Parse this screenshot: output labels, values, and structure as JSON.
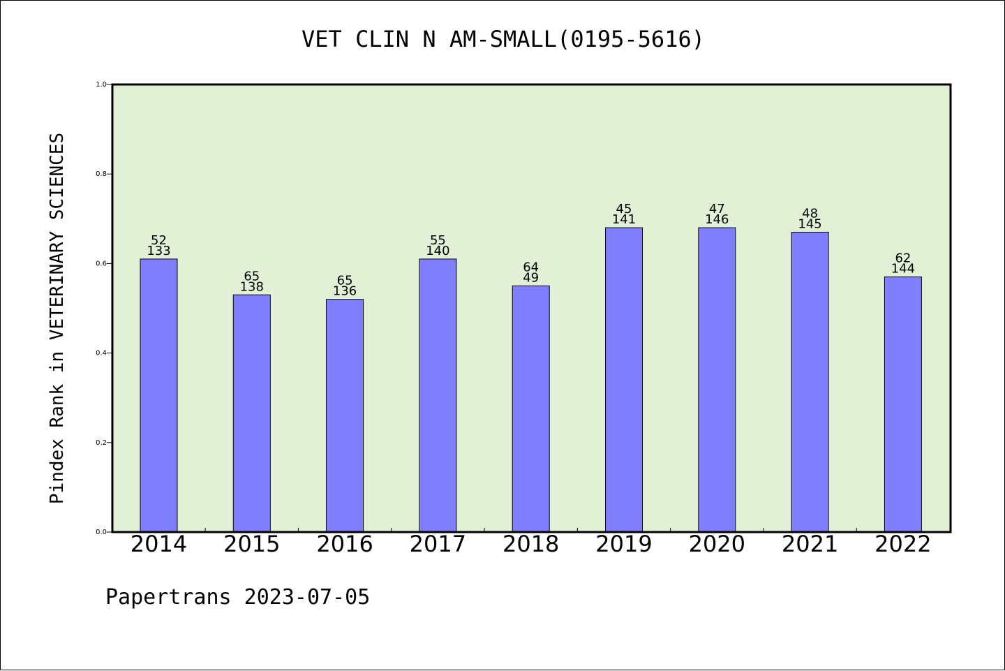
{
  "chart_data": {
    "type": "bar",
    "title": "VET CLIN N AM-SMALL(0195-5616)",
    "xlabel": "",
    "ylabel": "Pindex Rank in VETERINARY SCIENCES",
    "ylim": [
      0.0,
      1.0
    ],
    "yticks": [
      "0.0",
      "0.2",
      "0.4",
      "0.6",
      "0.8",
      "1.0"
    ],
    "grid": false,
    "categories": [
      "2014",
      "2015",
      "2016",
      "2017",
      "2018",
      "2019",
      "2020",
      "2021",
      "2022"
    ],
    "values": [
      0.61,
      0.53,
      0.52,
      0.61,
      0.55,
      0.68,
      0.68,
      0.67,
      0.57
    ],
    "labels_top": [
      "52",
      "65",
      "65",
      "55",
      "64",
      "45",
      "47",
      "48",
      "62"
    ],
    "labels_bottom": [
      "133",
      "138",
      "136",
      "140",
      "49",
      "141",
      "146",
      "145",
      "144"
    ],
    "bar_color": "#8080ff",
    "plot_background": "#e2f0d6"
  },
  "footer": {
    "text": "Papertrans 2023-07-05"
  }
}
